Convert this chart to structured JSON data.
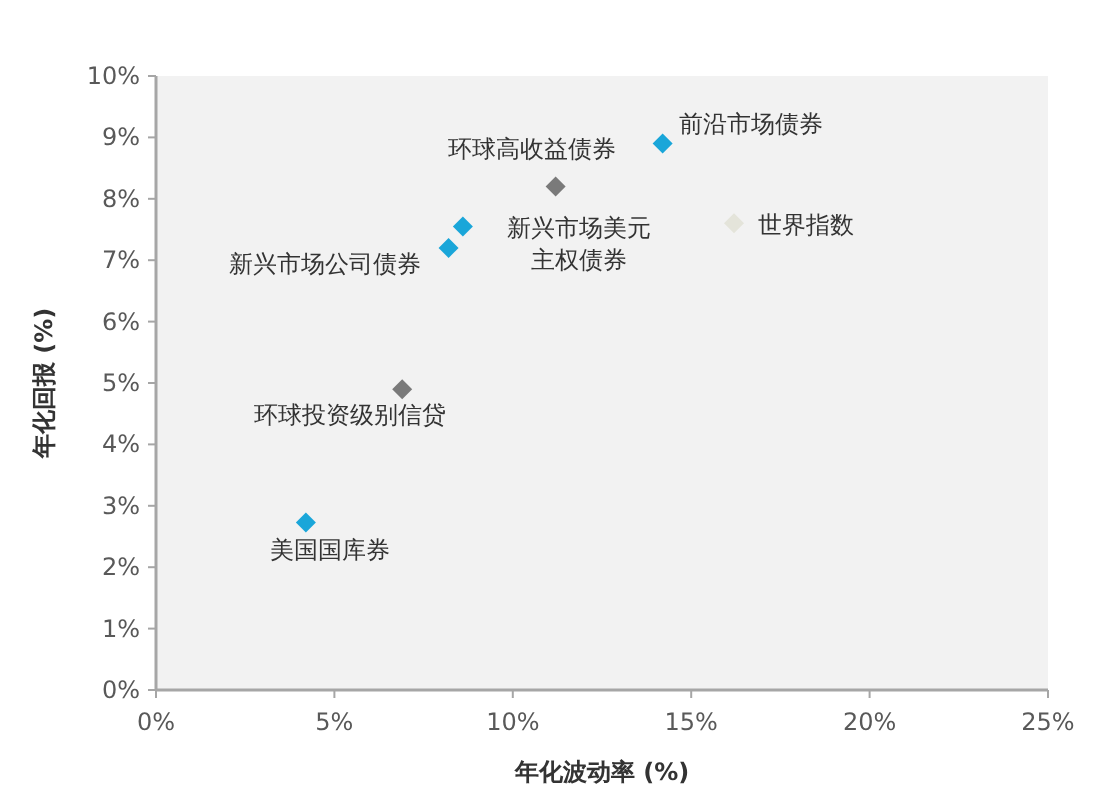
{
  "chart_data": {
    "type": "scatter",
    "xlabel": "年化波动率 (%)",
    "ylabel": "年化回报 (%)",
    "marker": "diamond",
    "grid": false,
    "xlim": [
      0,
      25
    ],
    "ylim": [
      0,
      10
    ],
    "xticks": [
      {
        "value": 0,
        "label": "0%"
      },
      {
        "value": 5,
        "label": "5%"
      },
      {
        "value": 10,
        "label": "10%"
      },
      {
        "value": 15,
        "label": "15%"
      },
      {
        "value": 20,
        "label": "20%"
      },
      {
        "value": 25,
        "label": "25%"
      }
    ],
    "yticks": [
      {
        "value": 0,
        "label": "0%"
      },
      {
        "value": 1,
        "label": "1%"
      },
      {
        "value": 2,
        "label": "2%"
      },
      {
        "value": 3,
        "label": "3%"
      },
      {
        "value": 4,
        "label": "4%"
      },
      {
        "value": 5,
        "label": "5%"
      },
      {
        "value": 6,
        "label": "6%"
      },
      {
        "value": 7,
        "label": "7%"
      },
      {
        "value": 8,
        "label": "8%"
      },
      {
        "value": 9,
        "label": "9%"
      },
      {
        "value": 10,
        "label": "10%"
      }
    ],
    "x": [
      14.2,
      11.2,
      8.6,
      8.2,
      16.2,
      6.9,
      4.2
    ],
    "values": [
      8.9,
      8.2,
      7.55,
      7.2,
      7.6,
      4.9,
      2.73
    ],
    "colors": [
      "#1aa6d9",
      "#7a7a7a",
      "#1aa6d9",
      "#1aa6d9",
      "#e4e4da",
      "#7a7a7a",
      "#1aa6d9"
    ],
    "annotations": [
      {
        "text": "前沿市场债券",
        "x": 14.2,
        "y": 8.9
      },
      {
        "text": "环球高收益债券",
        "x": 11.2,
        "y": 8.2
      },
      {
        "text": "新兴市场美元主权债券",
        "x": 8.6,
        "y": 7.55
      },
      {
        "text": "新兴市场公司债券",
        "x": 8.2,
        "y": 7.2
      },
      {
        "text": "世界指数",
        "x": 16.2,
        "y": 7.6
      },
      {
        "text": "环球投资级别信贷",
        "x": 6.9,
        "y": 4.9
      },
      {
        "text": "美国国库券",
        "x": 4.2,
        "y": 2.73
      }
    ]
  }
}
